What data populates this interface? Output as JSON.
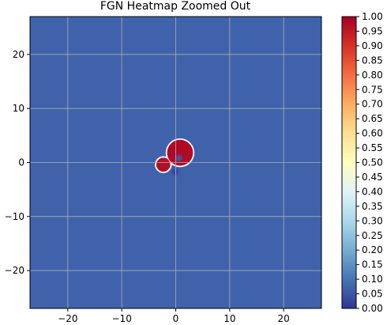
{
  "chart_data": {
    "type": "heatmap",
    "title": "FGN Heatmap Zoomed Out",
    "xlabel": "",
    "ylabel": "",
    "xlim": [
      -27,
      27
    ],
    "ylim": [
      -27,
      27
    ],
    "xticks": [
      -20,
      -10,
      0,
      10,
      20
    ],
    "yticks": [
      20,
      10,
      0,
      -10,
      -20
    ],
    "grid": true,
    "background_value": 0.07,
    "colormap": "RdYlBu_r",
    "colormap_stops": [
      "#313695",
      "#4575b4",
      "#74add1",
      "#abd9e9",
      "#e0f3f8",
      "#ffffbf",
      "#fee090",
      "#fdae61",
      "#f46d43",
      "#d73027",
      "#a50026"
    ],
    "colorbar": {
      "min": 0.0,
      "max": 1.0,
      "ticks": [
        "1.00",
        "0.95",
        "0.90",
        "0.85",
        "0.80",
        "0.75",
        "0.70",
        "0.65",
        "0.60",
        "0.55",
        "0.50",
        "0.45",
        "0.40",
        "0.35",
        "0.30",
        "0.25",
        "0.20",
        "0.15",
        "0.10",
        "0.05",
        "0.00"
      ]
    },
    "features": [
      {
        "name": "main-lobe",
        "cx": 0.8,
        "cy": 1.8,
        "r": 2.4,
        "value": 0.98
      },
      {
        "name": "left-lobe",
        "cx": -2.3,
        "cy": -0.4,
        "r": 1.3,
        "value": 0.97
      },
      {
        "name": "right-hole",
        "cx": 0.6,
        "cy": 0.8,
        "r": 0.6,
        "value": 0.05
      },
      {
        "name": "lower-dip",
        "cx": -0.1,
        "cy": -1.7,
        "r": 0.7,
        "value": 0.03
      }
    ]
  }
}
